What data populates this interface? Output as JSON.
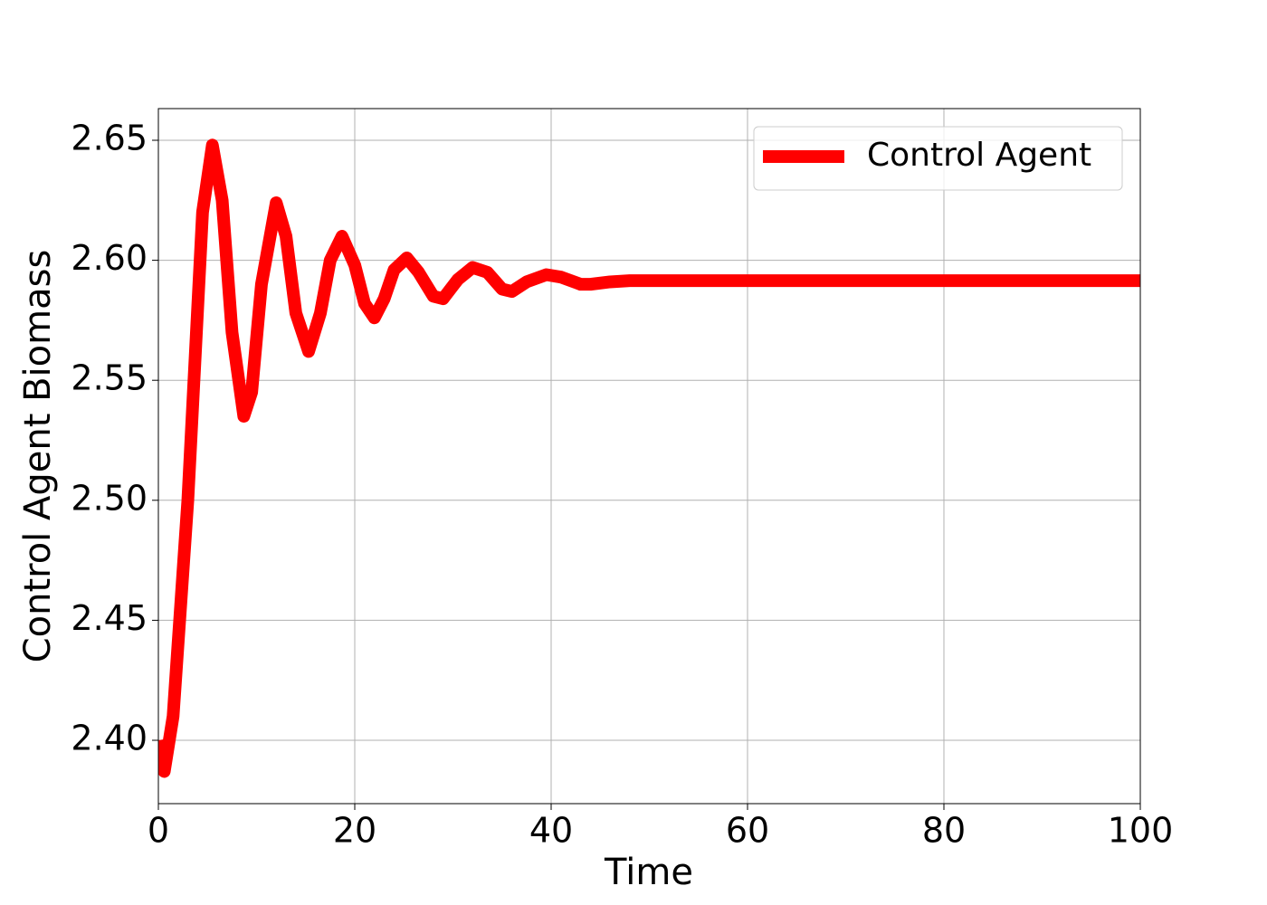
{
  "chart_data": {
    "type": "line",
    "xlabel": "Time",
    "ylabel": "Control Agent Biomass",
    "x": [
      0,
      0.6,
      1.5,
      3,
      4.5,
      5.5,
      6.5,
      7.5,
      8.7,
      9.5,
      10.5,
      12,
      13,
      14,
      15.3,
      16.5,
      17.5,
      18.7,
      20,
      21,
      22,
      23,
      24,
      25.3,
      26.5,
      28,
      29,
      30.5,
      32,
      33.5,
      35,
      36,
      37.5,
      39.5,
      41,
      43,
      44,
      46,
      48,
      55,
      100
    ],
    "series": [
      {
        "name": "Control Agent",
        "color": "#ff0000",
        "values": [
          2.4,
          2.387,
          2.41,
          2.5,
          2.62,
          2.648,
          2.625,
          2.57,
          2.535,
          2.545,
          2.59,
          2.624,
          2.61,
          2.578,
          2.562,
          2.578,
          2.6,
          2.61,
          2.598,
          2.582,
          2.576,
          2.584,
          2.596,
          2.601,
          2.595,
          2.585,
          2.584,
          2.592,
          2.597,
          2.595,
          2.588,
          2.587,
          2.591,
          2.594,
          2.593,
          2.59,
          2.59,
          2.591,
          2.5915,
          2.5915,
          2.5915
        ]
      }
    ],
    "xlim": [
      0,
      100
    ],
    "xticks": [
      0,
      20,
      40,
      60,
      80,
      100
    ],
    "ylim": [
      2.3736,
      2.6632
    ],
    "yticks": [
      {
        "value": 2.4,
        "label": "2.40"
      },
      2.45,
      {
        "value": 2.5,
        "label": "2.50"
      },
      2.55,
      {
        "value": 2.6,
        "label": "2.60"
      },
      2.65
    ],
    "grid": true,
    "legend": "upper right"
  }
}
